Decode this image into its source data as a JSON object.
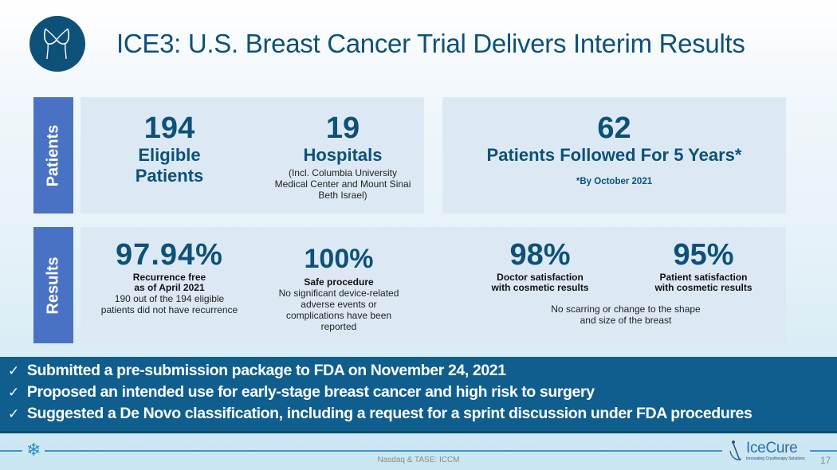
{
  "header": {
    "title": "ICE3: U.S. Breast Cancer Trial Delivers Interim Results",
    "logo_icon": "bra-icon"
  },
  "patients": {
    "section_label": "Patients",
    "eligible": {
      "value": "194",
      "label_line1": "Eligible",
      "label_line2": "Patients"
    },
    "hospitals": {
      "value": "19",
      "label": "Hospitals",
      "note_lines": [
        "(Incl. Columbia University",
        "Medical Center and Mount Sinai",
        "Beth Israel)"
      ]
    },
    "followed": {
      "value": "62",
      "label": "Patients Followed For 5 Years*",
      "footnote": "*By October 2021"
    }
  },
  "results": {
    "section_label": "Results",
    "recurrence": {
      "value": "97.94%",
      "label_lines": [
        "Recurrence free",
        "as of April 2021"
      ],
      "note_lines": [
        "190 out of the 194 eligible",
        "patients did not have recurrence"
      ]
    },
    "safety": {
      "value": "100%",
      "label": "Safe procedure",
      "note_lines": [
        "No significant device-related",
        "adverse events or",
        "complications have been",
        "reported"
      ]
    },
    "doctor": {
      "value": "98%",
      "label_lines": [
        "Doctor satisfaction",
        "with cosmetic results"
      ]
    },
    "patient": {
      "value": "95%",
      "label_lines": [
        "Patient satisfaction",
        "with cosmetic results"
      ]
    },
    "cosmetic_note_lines": [
      "No scarring or change to the shape",
      "and size of the breast"
    ]
  },
  "banner": {
    "check_glyph": "✓",
    "items": [
      "Submitted a pre-submission package to FDA on November 24, 2021",
      "Proposed an intended use for early-stage breast cancer and high risk to surgery",
      "Suggested a De Novo classification, including a request for a sprint discussion under FDA procedures"
    ]
  },
  "footer": {
    "ticker": "Nasdaq & TASE: ICCM",
    "page_number": "17",
    "brand_name": "IceCure",
    "brand_tagline": "Innovating Cryotherapy Solutions",
    "snowflake_glyph": "❄",
    "accent_color": "#0d5178"
  }
}
